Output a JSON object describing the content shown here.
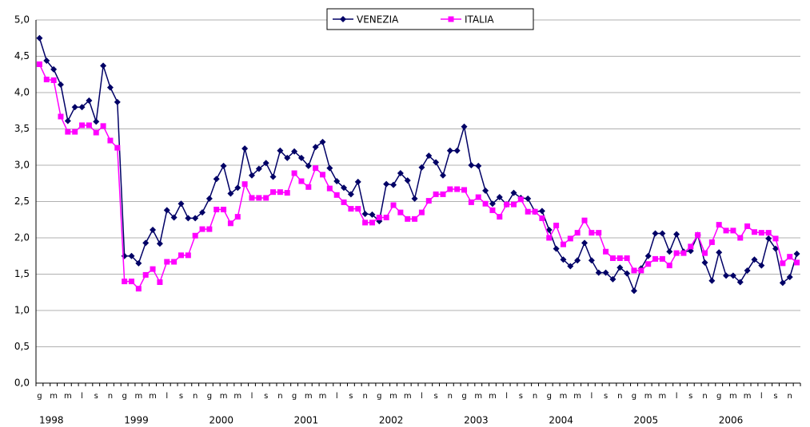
{
  "chart_data": {
    "type": "line",
    "categories": [
      "g",
      null,
      "m",
      null,
      "m",
      null,
      "l",
      null,
      "s",
      null,
      "n",
      null,
      "g",
      null,
      "m",
      null,
      "m",
      null,
      "l",
      null,
      "s",
      null,
      "n",
      null,
      "g",
      null,
      "m",
      null,
      "m",
      null,
      "l",
      null,
      "s",
      null,
      "n",
      null,
      "g",
      null,
      "m",
      null,
      "m",
      null,
      "l",
      null,
      "s",
      null,
      "n",
      null,
      "g",
      null,
      "m",
      null,
      "m",
      null,
      "l",
      null,
      "s",
      null,
      "n",
      null,
      "g",
      null,
      "m",
      null,
      "m",
      null,
      "l",
      null,
      "s",
      null,
      "n",
      null,
      "g",
      null,
      "m",
      null,
      "m",
      null,
      "l",
      null,
      "s",
      null,
      "n",
      null,
      "g",
      null,
      "m",
      null,
      "m",
      null,
      "l",
      null,
      "s",
      null,
      "n",
      null,
      "g",
      null,
      "m",
      null,
      "m",
      null,
      "l",
      null,
      "s",
      null,
      "n",
      null
    ],
    "years": [
      "1998",
      "1999",
      "2000",
      "2001",
      "2002",
      "2003",
      "2004",
      "2005",
      "2006"
    ],
    "series": [
      {
        "name": "VENEZIA",
        "color": "#000066",
        "marker": "diamond",
        "values": [
          4.75,
          4.44,
          4.32,
          4.11,
          3.61,
          3.8,
          3.8,
          3.89,
          3.6,
          4.37,
          4.07,
          3.87,
          1.75,
          1.75,
          1.65,
          1.93,
          2.11,
          1.92,
          2.38,
          2.28,
          2.47,
          2.27,
          2.27,
          2.35,
          2.54,
          2.81,
          2.99,
          2.61,
          2.69,
          3.23,
          2.86,
          2.95,
          3.03,
          2.84,
          3.2,
          3.1,
          3.19,
          3.1,
          2.99,
          3.25,
          3.32,
          2.96,
          2.78,
          2.69,
          2.6,
          2.77,
          2.33,
          2.32,
          2.23,
          2.74,
          2.73,
          2.89,
          2.79,
          2.54,
          2.97,
          3.13,
          3.04,
          2.86,
          3.2,
          3.2,
          3.53,
          3.0,
          2.99,
          2.65,
          2.47,
          2.56,
          2.46,
          2.62,
          2.55,
          2.54,
          2.36,
          2.37,
          2.11,
          1.85,
          1.7,
          1.61,
          1.69,
          1.93,
          1.69,
          1.52,
          1.52,
          1.43,
          1.59,
          1.51,
          1.27,
          1.58,
          1.75,
          2.06,
          2.06,
          1.81,
          2.05,
          1.81,
          1.82,
          2.04,
          1.66,
          1.41,
          1.8,
          1.48,
          1.48,
          1.39,
          1.55,
          1.7,
          1.62,
          1.99,
          1.85,
          1.38,
          1.46,
          1.78
        ]
      },
      {
        "name": "ITALIA",
        "color": "#ff00ff",
        "marker": "square",
        "values": [
          4.39,
          4.18,
          4.17,
          3.67,
          3.46,
          3.46,
          3.55,
          3.55,
          3.45,
          3.54,
          3.34,
          3.24,
          1.4,
          1.4,
          1.3,
          1.49,
          1.57,
          1.39,
          1.67,
          1.67,
          1.76,
          1.76,
          2.03,
          2.12,
          2.12,
          2.39,
          2.39,
          2.2,
          2.29,
          2.74,
          2.55,
          2.55,
          2.55,
          2.63,
          2.63,
          2.62,
          2.89,
          2.78,
          2.7,
          2.96,
          2.87,
          2.68,
          2.59,
          2.49,
          2.4,
          2.4,
          2.21,
          2.21,
          2.28,
          2.28,
          2.45,
          2.35,
          2.26,
          2.26,
          2.35,
          2.51,
          2.6,
          2.6,
          2.67,
          2.67,
          2.66,
          2.49,
          2.56,
          2.47,
          2.38,
          2.29,
          2.46,
          2.46,
          2.53,
          2.36,
          2.36,
          2.27,
          2.0,
          2.17,
          1.91,
          1.99,
          2.07,
          2.24,
          2.07,
          2.07,
          1.81,
          1.72,
          1.72,
          1.72,
          1.55,
          1.55,
          1.64,
          1.71,
          1.71,
          1.62,
          1.79,
          1.79,
          1.88,
          2.04,
          1.79,
          1.94,
          2.18,
          2.1,
          2.1,
          2.0,
          2.16,
          2.08,
          2.07,
          2.07,
          1.99,
          1.65,
          1.74,
          1.66
        ]
      }
    ],
    "ylim": [
      0,
      5
    ],
    "yticks": [
      {
        "value": 0,
        "label": "0,0"
      },
      {
        "value": 0.5,
        "label": "0,5"
      },
      {
        "value": 1,
        "label": "1,0"
      },
      {
        "value": 1.5,
        "label": "1,5"
      },
      {
        "value": 2,
        "label": "2,0"
      },
      {
        "value": 2.5,
        "label": "2,5"
      },
      {
        "value": 3,
        "label": "3,0"
      },
      {
        "value": 3.5,
        "label": "3,5"
      },
      {
        "value": 4,
        "label": "4,0"
      },
      {
        "value": 4.5,
        "label": "4,5"
      },
      {
        "value": 5,
        "label": "5,0"
      }
    ],
    "grid": true,
    "legend": "top"
  }
}
